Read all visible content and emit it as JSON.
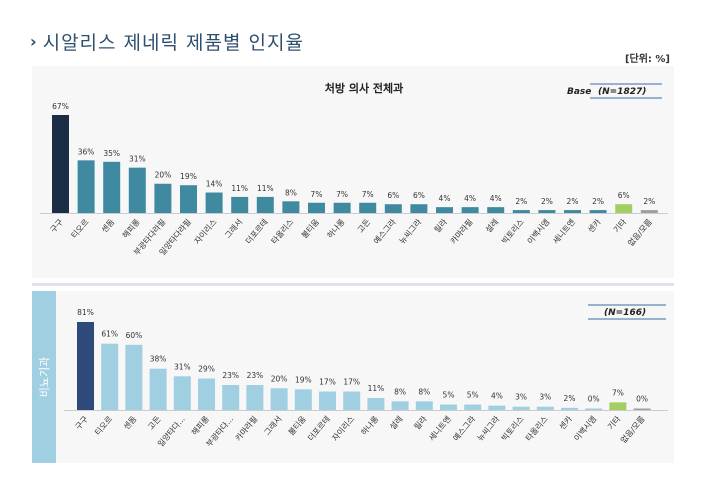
{
  "header": {
    "arrow": "›",
    "title": "시알리스 제네릭 제품별 인지율",
    "unit": "[단위: %]"
  },
  "colors": {
    "dark": "#1c2e45",
    "teal": "#3f8aa0",
    "light_blue": "#9fcfe0",
    "navy": "#2e4a7a",
    "green": "#a3cf62",
    "gray": "#a0a0a0",
    "panel_bg": "#f7f7f7"
  },
  "chart_data": [
    {
      "type": "bar",
      "title": "처방 의사 전체과",
      "base_label": "Base",
      "n_label": "(N=1827)",
      "categories": [
        "구구",
        "티오르",
        "센돔",
        "해피롱",
        "부광타다라필",
        "일양타다라필",
        "자이리스",
        "그래서",
        "더포르테",
        "타올리스",
        "불티움",
        "하나롱",
        "고든",
        "예스그라",
        "뉴씨그라",
        "릴라",
        "카마라필",
        "설레",
        "빅토리스",
        "이백시엠",
        "세니트엔",
        "센카",
        "기타",
        "없음/모름"
      ],
      "values": [
        67,
        36,
        35,
        31,
        20,
        19,
        14,
        11,
        11,
        8,
        7,
        7,
        7,
        6,
        6,
        4,
        4,
        4,
        2,
        2,
        2,
        2,
        6,
        2
      ],
      "value_labels": [
        "67%",
        "36%",
        "35%",
        "31%",
        "20%",
        "19%",
        "14%",
        "11%",
        "11%",
        "8%",
        "7%",
        "7%",
        "7%",
        "6%",
        "6%",
        "4%",
        "4%",
        "4%",
        "2%",
        "2%",
        "2%",
        "2%",
        "6%",
        "2%"
      ],
      "ylim": [
        0,
        70
      ]
    },
    {
      "type": "bar",
      "side_label": "비뇨기과",
      "n_label": "(N=166)",
      "categories": [
        "구구",
        "티오르",
        "센돔",
        "고든",
        "일양타다...",
        "해피롱",
        "부광타다...",
        "카마라필",
        "그래서",
        "불티움",
        "더포르테",
        "자이리스",
        "하나롱",
        "설레",
        "릴라",
        "세니트엔",
        "예스그라",
        "뉴씨그라",
        "빅토리스",
        "타올리스",
        "센카",
        "이백시엠",
        "기타",
        "없음/모름"
      ],
      "values": [
        81,
        61,
        60,
        38,
        31,
        29,
        23,
        23,
        20,
        19,
        17,
        17,
        11,
        8,
        8,
        5,
        5,
        4,
        3,
        3,
        2,
        0,
        7,
        0
      ],
      "value_labels": [
        "81%",
        "61%",
        "60%",
        "38%",
        "31%",
        "29%",
        "23%",
        "23%",
        "20%",
        "19%",
        "17%",
        "17%",
        "11%",
        "8%",
        "8%",
        "5%",
        "5%",
        "4%",
        "3%",
        "3%",
        "2%",
        "0%",
        "7%",
        "0%"
      ],
      "ylim": [
        0,
        85
      ]
    }
  ]
}
